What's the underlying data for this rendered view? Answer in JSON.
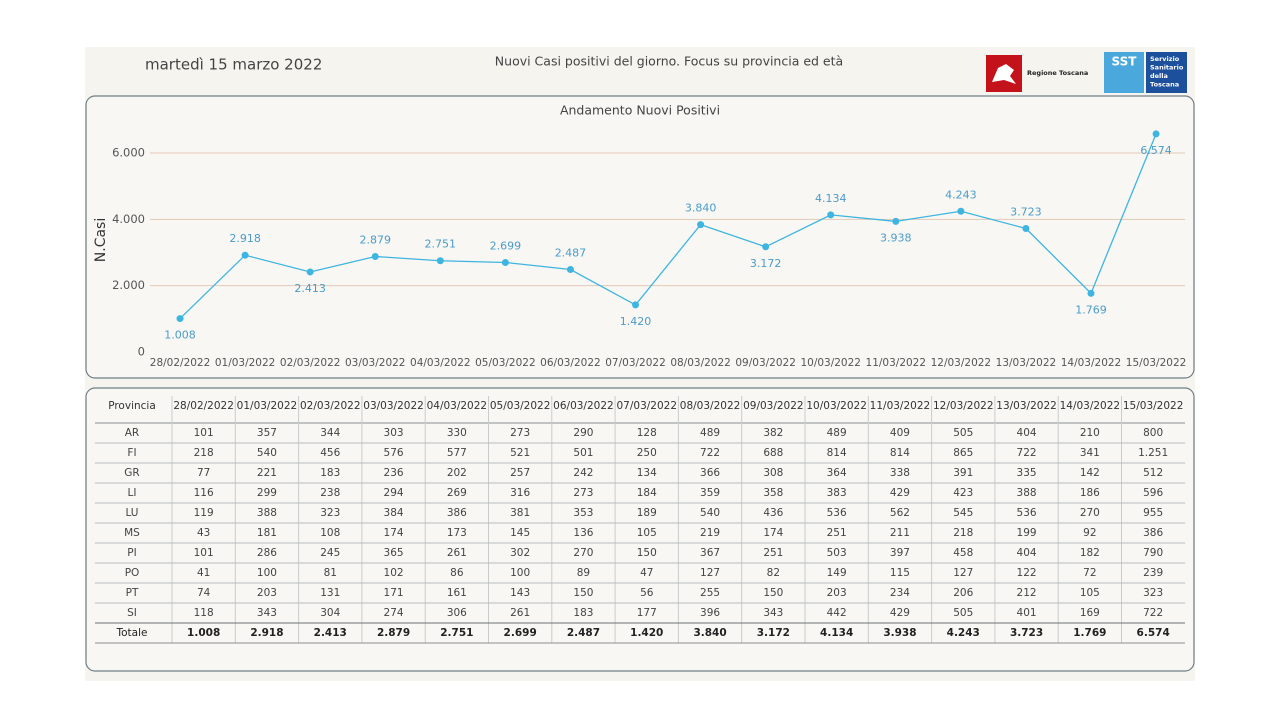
{
  "header": {
    "date": "martedì 15 marzo 2022",
    "title": "Nuovi Casi positivi del giorno. Focus su provincia ed età",
    "logo_left": "Regione Toscana",
    "logo_right_mark": "SST",
    "logo_right_text": [
      "Servizio",
      "Sanitario",
      "della",
      "Toscana"
    ]
  },
  "chart_data": {
    "type": "line",
    "title": "Andamento Nuovi Positivi",
    "y_label": "N.Casi",
    "categories": [
      "28/02/2022",
      "01/03/2022",
      "02/03/2022",
      "03/03/2022",
      "04/03/2022",
      "05/03/2022",
      "06/03/2022",
      "07/03/2022",
      "08/03/2022",
      "09/03/2022",
      "10/03/2022",
      "11/03/2022",
      "12/03/2022",
      "13/03/2022",
      "14/03/2022",
      "15/03/2022"
    ],
    "values": [
      1008,
      2918,
      2413,
      2879,
      2751,
      2699,
      2487,
      1420,
      3840,
      3172,
      4134,
      3938,
      4243,
      3723,
      1769,
      6574
    ],
    "value_labels": [
      "1.008",
      "2.918",
      "2.413",
      "2.879",
      "2.751",
      "2.699",
      "2.487",
      "1.420",
      "3.840",
      "3.172",
      "4.134",
      "3.938",
      "4.243",
      "3.723",
      "1.769",
      "6.574"
    ],
    "color": "#3db5e0",
    "ylim": [
      0,
      7000
    ],
    "yticks": [
      0,
      {
        "value": 2000,
        "label": "2.000"
      },
      {
        "value": 4000,
        "label": "4.000"
      },
      {
        "value": 6000,
        "label": "6.000"
      }
    ],
    "grid": true
  },
  "table": {
    "header": [
      "Provincia",
      "28/02/2022",
      "01/03/2022",
      "02/03/2022",
      "03/03/2022",
      "04/03/2022",
      "05/03/2022",
      "06/03/2022",
      "07/03/2022",
      "08/03/2022",
      "09/03/2022",
      "10/03/2022",
      "11/03/2022",
      "12/03/2022",
      "13/03/2022",
      "14/03/2022",
      "15/03/2022"
    ],
    "rows": [
      [
        "AR",
        "101",
        "357",
        "344",
        "303",
        "330",
        "273",
        "290",
        "128",
        "489",
        "382",
        "489",
        "409",
        "505",
        "404",
        "210",
        "800"
      ],
      [
        "FI",
        "218",
        "540",
        "456",
        "576",
        "577",
        "521",
        "501",
        "250",
        "722",
        "688",
        "814",
        "814",
        "865",
        "722",
        "341",
        "1.251"
      ],
      [
        "GR",
        "77",
        "221",
        "183",
        "236",
        "202",
        "257",
        "242",
        "134",
        "366",
        "308",
        "364",
        "338",
        "391",
        "335",
        "142",
        "512"
      ],
      [
        "LI",
        "116",
        "299",
        "238",
        "294",
        "269",
        "316",
        "273",
        "184",
        "359",
        "358",
        "383",
        "429",
        "423",
        "388",
        "186",
        "596"
      ],
      [
        "LU",
        "119",
        "388",
        "323",
        "384",
        "386",
        "381",
        "353",
        "189",
        "540",
        "436",
        "536",
        "562",
        "545",
        "536",
        "270",
        "955"
      ],
      [
        "MS",
        "43",
        "181",
        "108",
        "174",
        "173",
        "145",
        "136",
        "105",
        "219",
        "174",
        "251",
        "211",
        "218",
        "199",
        "92",
        "386"
      ],
      [
        "PI",
        "101",
        "286",
        "245",
        "365",
        "261",
        "302",
        "270",
        "150",
        "367",
        "251",
        "503",
        "397",
        "458",
        "404",
        "182",
        "790"
      ],
      [
        "PO",
        "41",
        "100",
        "81",
        "102",
        "86",
        "100",
        "89",
        "47",
        "127",
        "82",
        "149",
        "115",
        "127",
        "122",
        "72",
        "239"
      ],
      [
        "PT",
        "74",
        "203",
        "131",
        "171",
        "161",
        "143",
        "150",
        "56",
        "255",
        "150",
        "203",
        "234",
        "206",
        "212",
        "105",
        "323"
      ],
      [
        "SI",
        "118",
        "343",
        "304",
        "274",
        "306",
        "261",
        "183",
        "177",
        "396",
        "343",
        "442",
        "429",
        "505",
        "401",
        "169",
        "722"
      ]
    ],
    "total": [
      "Totale",
      "1.008",
      "2.918",
      "2.413",
      "2.879",
      "2.751",
      "2.699",
      "2.487",
      "1.420",
      "3.840",
      "3.172",
      "4.134",
      "3.938",
      "4.243",
      "3.723",
      "1.769",
      "6.574"
    ]
  }
}
